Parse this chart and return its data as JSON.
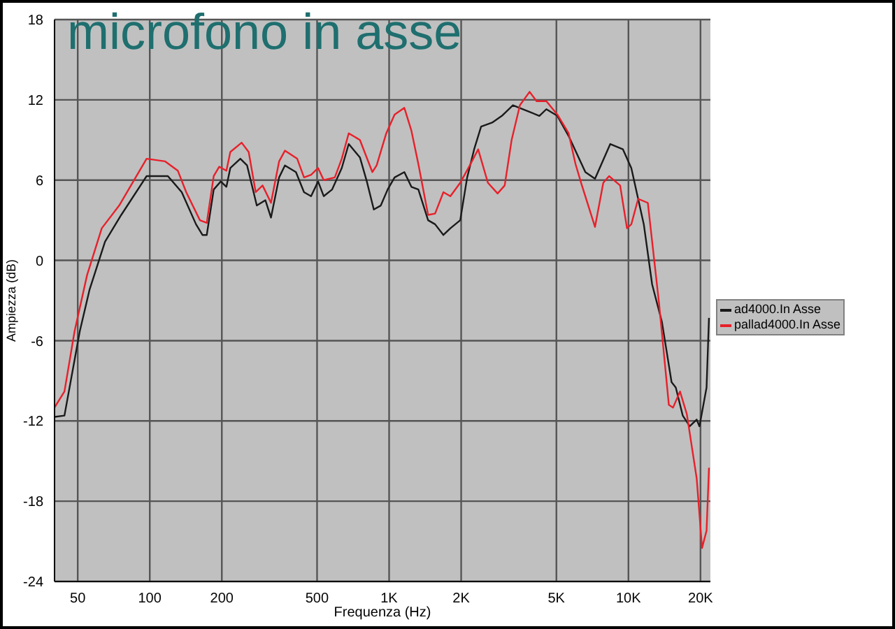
{
  "chart_data": {
    "type": "line",
    "title": "microfono in asse",
    "xlabel": "Frequenza (Hz)",
    "ylabel": "Ampiezza (dB)",
    "log": "x",
    "grid": true,
    "legend": "right",
    "marker": "none",
    "line_style": "solid",
    "xlim": [
      40,
      22000
    ],
    "ylim": [
      -24,
      18
    ],
    "xticks": [
      50,
      100,
      200,
      500,
      {
        "value": 1000,
        "label": "1K"
      },
      {
        "value": 2000,
        "label": "2K"
      },
      {
        "value": 5000,
        "label": "5K"
      },
      {
        "value": 10000,
        "label": "10K"
      },
      {
        "value": 20000,
        "label": "20K"
      }
    ],
    "yticks": [
      -24,
      -18,
      -12,
      -6,
      0,
      6,
      12,
      18
    ],
    "series": [
      {
        "name": "ad4000.In Asse",
        "color": "#1a1a1a",
        "x": [
          40,
          44,
          51,
          56,
          65,
          76,
          97,
          119,
          136,
          156,
          166,
          173,
          185,
          198,
          209,
          217,
          239,
          255,
          280,
          304,
          321,
          347,
          367,
          408,
          441,
          472,
          505,
          533,
          578,
          634,
          678,
          755,
          807,
          863,
          923,
          986,
          1054,
          1158,
          1239,
          1325,
          1455,
          1556,
          1686,
          1803,
          1982,
          2119,
          2266,
          2423,
          2694,
          2958,
          3290,
          3864,
          4244,
          4539,
          5047,
          5623,
          6607,
          7248,
          8395,
          9484,
          10280,
          11590,
          12560,
          13800,
          15140,
          15770,
          16860,
          18030,
          19280,
          19800,
          21200,
          21700
        ],
        "values": [
          -11.7,
          -11.6,
          -5.3,
          -2.2,
          1.4,
          3.4,
          6.3,
          6.3,
          5.1,
          2.7,
          1.9,
          1.9,
          5.3,
          5.9,
          5.5,
          6.9,
          7.6,
          7.1,
          4.1,
          4.5,
          3.2,
          6.2,
          7.1,
          6.6,
          5.1,
          4.8,
          5.9,
          4.8,
          5.3,
          6.9,
          8.7,
          7.7,
          5.9,
          3.8,
          4.1,
          5.3,
          6.2,
          6.6,
          5.5,
          5.3,
          3.0,
          2.7,
          1.9,
          2.4,
          3.0,
          6.2,
          8.3,
          10.0,
          10.3,
          10.8,
          11.6,
          11.1,
          10.8,
          11.3,
          10.8,
          9.3,
          6.6,
          6.1,
          8.7,
          8.3,
          6.9,
          2.7,
          -1.8,
          -4.6,
          -9.1,
          -9.5,
          -11.6,
          -12.4,
          -11.9,
          -12.4,
          -9.5,
          -4.3
        ]
      },
      {
        "name": "pallad4000.In Asse",
        "color": "#e8202a",
        "x": [
          40,
          44,
          48.5,
          54.7,
          63,
          74.5,
          97,
          116,
          131,
          142,
          162,
          173,
          185,
          195,
          209,
          217,
          242,
          259,
          277,
          296,
          321,
          347,
          367,
          413,
          441,
          472,
          505,
          533,
          593,
          634,
          678,
          755,
          851,
          887,
          973,
          1054,
          1158,
          1239,
          1325,
          1455,
          1556,
          1686,
          1803,
          1982,
          2173,
          2355,
          2587,
          2840,
          3040,
          3250,
          3520,
          3864,
          4130,
          4539,
          5047,
          5623,
          6010,
          6340,
          7248,
          7850,
          8300,
          9230,
          9860,
          10280,
          10980,
          12050,
          13420,
          14750,
          15360,
          16420,
          17540,
          19280,
          20300,
          21200,
          21700
        ],
        "values": [
          -11.0,
          -9.8,
          -5.3,
          -1.1,
          2.4,
          4.1,
          7.6,
          7.4,
          6.7,
          5.1,
          3.0,
          2.8,
          6.3,
          7.0,
          6.7,
          8.1,
          8.8,
          8.1,
          5.1,
          5.6,
          4.3,
          7.4,
          8.2,
          7.6,
          6.2,
          6.4,
          6.9,
          6.0,
          6.2,
          7.6,
          9.5,
          9.0,
          6.6,
          7.1,
          9.5,
          10.9,
          11.4,
          9.7,
          7.2,
          3.4,
          3.5,
          5.1,
          4.8,
          5.8,
          7.1,
          8.3,
          5.8,
          5.0,
          5.6,
          9.0,
          11.6,
          12.6,
          11.9,
          11.9,
          10.9,
          9.5,
          7.2,
          5.8,
          2.5,
          5.8,
          6.3,
          5.6,
          2.4,
          2.7,
          4.6,
          4.3,
          -3.2,
          -10.8,
          -11.0,
          -9.8,
          -11.5,
          -16.3,
          -21.5,
          -20.2,
          -15.5
        ]
      }
    ]
  }
}
